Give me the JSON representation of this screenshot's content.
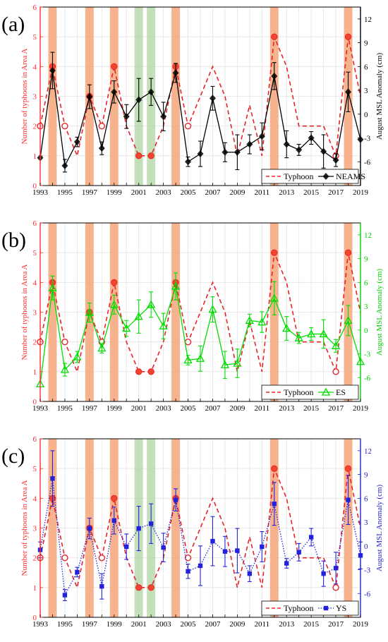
{
  "panels": [
    {
      "tag": "(a)",
      "right_color": "#000000",
      "chart_data": {
        "type": "line",
        "x": [
          1993,
          1994,
          1995,
          1996,
          1997,
          1998,
          1999,
          2000,
          2001,
          2002,
          2003,
          2004,
          2005,
          2006,
          2007,
          2008,
          2009,
          2010,
          2011,
          2012,
          2013,
          2014,
          2015,
          2016,
          2017,
          2018,
          2019
        ],
        "xlim": [
          1993,
          2019
        ],
        "xticks": [
          "1993",
          "1995",
          "1997",
          "1999",
          "2001",
          "2003",
          "2005",
          "2007",
          "2009",
          "2011",
          "2013",
          "2015",
          "2017",
          "2019"
        ],
        "ylabel_left": "Number of typhoons in Area A",
        "ylim_left": [
          0,
          6
        ],
        "yticks_left": [
          "0",
          "1",
          "2",
          "3",
          "4",
          "5",
          "6"
        ],
        "ylabel_right": "August MSL Anomaly (cm)",
        "ylim_right": [
          -9,
          13.5
        ],
        "yticks_right": [
          "-6",
          "-3",
          "0",
          "3",
          "6",
          "9",
          "12"
        ],
        "typhoon": [
          2,
          4,
          2,
          1,
          3,
          2,
          4,
          2,
          1,
          1,
          2,
          4,
          2,
          3,
          4,
          3,
          1,
          2.7,
          1,
          5,
          4,
          2,
          2,
          2,
          1,
          5,
          3
        ],
        "typhoon_markers": {
          "filled": [
            1994,
            1997,
            1999,
            2001,
            2002,
            2004,
            2012,
            2018
          ],
          "open": [
            1993,
            1995,
            1998,
            2005,
            2017
          ]
        },
        "highlight_orange": [
          1994,
          1997,
          1999,
          2004,
          2012,
          2018
        ],
        "highlight_green": [
          2001,
          2002
        ],
        "series": {
          "name": "NEAMS",
          "color": "#000000",
          "marker": "diamond",
          "line": "solid",
          "values": [
            -5.5,
            5.5,
            -6.5,
            -3.5,
            2.2,
            -4.3,
            2.8,
            -0.3,
            1.8,
            2.8,
            -0.3,
            5.2,
            -6,
            -5,
            2,
            -4.8,
            -4.8,
            -3.8,
            -2.8,
            4.8,
            -3.8,
            -4.5,
            -3,
            -4.7,
            -5.8,
            2.8,
            -3.2
          ],
          "errors": [
            0,
            2.3,
            0.8,
            0.6,
            1.5,
            0.8,
            1.4,
            1.5,
            2.7,
            1.7,
            1.8,
            1.2,
            0.6,
            1.6,
            1.5,
            1.2,
            2.2,
            1.2,
            1.7,
            1.7,
            1.7,
            0.7,
            0.8,
            2.1,
            0.8,
            2.5,
            0
          ]
        },
        "legend": {
          "typhoon": "Typhoon",
          "series": "NEAMS"
        }
      }
    },
    {
      "tag": "(b)",
      "right_color": "#00cc00",
      "chart_data": {
        "type": "line",
        "x": [
          1993,
          1994,
          1995,
          1996,
          1997,
          1998,
          1999,
          2000,
          2001,
          2002,
          2003,
          2004,
          2005,
          2006,
          2007,
          2008,
          2009,
          2010,
          2011,
          2012,
          2013,
          2014,
          2015,
          2016,
          2017,
          2018,
          2019
        ],
        "xlim": [
          1993,
          2019
        ],
        "xticks": [
          "1993",
          "1995",
          "1997",
          "1999",
          "2001",
          "2003",
          "2005",
          "2007",
          "2009",
          "2011",
          "2013",
          "2015",
          "2017",
          "2019"
        ],
        "ylabel_left": "Number of typhoons in Area A",
        "ylim_left": [
          0,
          6
        ],
        "yticks_left": [
          "0",
          "1",
          "2",
          "3",
          "4",
          "5",
          "6"
        ],
        "ylabel_right": "August MSL Anomaly (cm)",
        "ylim_right": [
          -9,
          13.5
        ],
        "yticks_right": [
          "-6",
          "-3",
          "0",
          "3",
          "6",
          "9",
          "12"
        ],
        "typhoon": [
          2,
          4,
          2,
          1,
          3,
          2,
          4,
          2,
          1,
          1,
          2,
          4,
          2,
          3,
          4,
          3,
          1,
          2.7,
          1,
          5,
          4,
          2,
          2,
          2,
          1,
          5,
          3
        ],
        "typhoon_markers": {
          "filled": [
            1994,
            1997,
            1999,
            2001,
            2002,
            2004,
            2012,
            2018
          ],
          "open": [
            1993,
            1995,
            1998,
            2005,
            2017
          ]
        },
        "highlight_orange": [
          1994,
          1997,
          1999,
          2004,
          2012,
          2018
        ],
        "highlight_green": [],
        "series": {
          "name": "ES",
          "color": "#00dd00",
          "marker": "triangle",
          "line": "solid",
          "values": [
            -6.8,
            5.3,
            -5,
            -3.4,
            2.2,
            -2.3,
            3.2,
            0.2,
            1.7,
            3.2,
            0.5,
            5.5,
            -3.8,
            -3.6,
            2.6,
            -4.4,
            -4.2,
            1.2,
            1,
            4,
            0.2,
            -1,
            -0.5,
            -0.5,
            -2,
            1.2,
            -4
          ],
          "errors": [
            0,
            1.5,
            0.8,
            0.7,
            1.2,
            0.6,
            1.2,
            1.0,
            2.1,
            1.6,
            1.6,
            1.7,
            0.6,
            1.6,
            1.6,
            1.7,
            1.8,
            0.8,
            1.3,
            2.1,
            1.5,
            0.7,
            0.8,
            1.8,
            0.8,
            1.9,
            0
          ]
        },
        "legend": {
          "typhoon": "Typhoon",
          "series": "ES"
        }
      }
    },
    {
      "tag": "(c)",
      "right_color": "#2222cc",
      "chart_data": {
        "type": "line",
        "x": [
          1993,
          1994,
          1995,
          1996,
          1997,
          1998,
          1999,
          2000,
          2001,
          2002,
          2003,
          2004,
          2005,
          2006,
          2007,
          2008,
          2009,
          2010,
          2011,
          2012,
          2013,
          2014,
          2015,
          2016,
          2017,
          2018,
          2019
        ],
        "xlim": [
          1993,
          2019
        ],
        "xticks": [
          "1993",
          "1995",
          "1997",
          "1999",
          "2001",
          "2003",
          "2005",
          "2007",
          "2009",
          "2011",
          "2013",
          "2015",
          "2017",
          "2019"
        ],
        "ylabel_left": "Number of typhoons in Area A",
        "ylim_left": [
          0,
          6
        ],
        "yticks_left": [
          "0",
          "1",
          "2",
          "3",
          "4",
          "5",
          "6"
        ],
        "ylabel_right": "August MSL Anomaly (cm)",
        "ylim_right": [
          -9,
          13.5
        ],
        "yticks_right": [
          "-6",
          "-3",
          "0",
          "3",
          "6",
          "9",
          "12"
        ],
        "typhoon": [
          2,
          4,
          2,
          1,
          3,
          2,
          4,
          2,
          1,
          1,
          2,
          4,
          2,
          3,
          4,
          3,
          1,
          2.7,
          1,
          5,
          4,
          2,
          2,
          2,
          1,
          5,
          3
        ],
        "typhoon_markers": {
          "filled": [
            1994,
            1997,
            1999,
            2001,
            2002,
            2004,
            2012,
            2018
          ],
          "open": [
            1993,
            1995,
            1998,
            2005,
            2017
          ]
        },
        "highlight_orange": [
          1994,
          1997,
          1999,
          2004,
          2012,
          2018
        ],
        "highlight_green": [
          2001,
          2002
        ],
        "series": {
          "name": "YS",
          "color": "#2222dd",
          "marker": "square",
          "line": "dotted",
          "values": [
            -0.5,
            8.5,
            -6.2,
            -3.3,
            2.2,
            -5.1,
            3.2,
            -0.1,
            2.2,
            2.8,
            -0.2,
            5.8,
            -3.2,
            -2.5,
            0.6,
            -0.7,
            -0.6,
            -3.5,
            -0.1,
            5.3,
            -2.2,
            -0.8,
            1.1,
            -3.5,
            -2.8,
            5.8,
            -1.2
          ],
          "errors": [
            1.0,
            3.5,
            0.7,
            0.6,
            1.3,
            1.6,
            1.7,
            1.6,
            2.8,
            2.5,
            1.8,
            1.4,
            0.9,
            2.5,
            3.1,
            1.9,
            2.8,
            1.0,
            1.9,
            2.7,
            0.6,
            1.1,
            1.1,
            1.6,
            2.0,
            3.1,
            1.7
          ]
        },
        "legend": {
          "typhoon": "Typhoon",
          "series": "YS"
        }
      }
    }
  ]
}
